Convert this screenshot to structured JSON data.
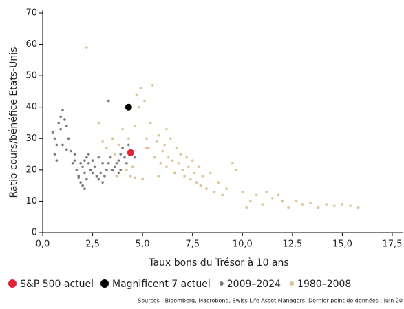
{
  "chart_data": {
    "type": "scatter",
    "xlabel": "Taux bons du Trésor à 10 ans",
    "ylabel": "Ratio cours/bénéfice Etats-Unis",
    "source": "Sources : Bloomberg, Macrobond, Swiss Life Asset Managers. Dernier point de données : juin 20",
    "xlim": [
      0,
      17.5
    ],
    "ylim": [
      0,
      70
    ],
    "xticks": [
      {
        "value": 0,
        "label": "0,0"
      },
      {
        "value": 2.5,
        "label": "2,5"
      },
      {
        "value": 5,
        "label": "5,0"
      },
      {
        "value": 7.5,
        "label": "7,5"
      },
      {
        "value": 10,
        "label": "10,0"
      },
      {
        "value": 12.5,
        "label": "12,5"
      },
      {
        "value": 15,
        "label": "15,0"
      },
      {
        "value": 17.5,
        "label": "17,5"
      }
    ],
    "yticks": [
      0,
      10,
      20,
      30,
      40,
      50,
      60,
      70
    ],
    "series": [
      {
        "name": "S&P 500 actuel",
        "color": "#e0253a",
        "x": [
          4.4
        ],
        "values": [
          25.5
        ]
      },
      {
        "name": "Magnificent 7 actuel",
        "color": "#000000",
        "x": [
          4.3
        ],
        "values": [
          40
        ]
      },
      {
        "name": "2009–2024",
        "color": "#7a7a7a",
        "x": [
          0.5,
          0.6,
          0.7,
          0.6,
          0.7,
          0.8,
          0.9,
          1.0,
          1.1,
          0.9,
          1.2,
          1.3,
          1.0,
          1.2,
          1.4,
          1.6,
          1.5,
          1.7,
          1.8,
          1.9,
          2.0,
          2.1,
          2.2,
          2.0,
          2.1,
          2.2,
          2.3,
          2.4,
          2.5,
          2.5,
          2.6,
          2.7,
          2.8,
          2.9,
          3.0,
          3.1,
          3.2,
          3.3,
          3.0,
          2.8,
          2.3,
          3.4,
          3.5,
          3.6,
          3.7,
          3.8,
          3.9,
          4.0,
          4.1,
          4.2,
          4.3,
          4.5,
          4.6,
          3.8,
          3.9,
          3.3,
          2.1,
          1.9,
          1.6,
          1.8
        ],
        "values": [
          32,
          30,
          28,
          25,
          23,
          35,
          37,
          39,
          36,
          33,
          34,
          30,
          28,
          26.5,
          26,
          25,
          22,
          20,
          18,
          16,
          15,
          14,
          17,
          21,
          23,
          24,
          22,
          20,
          19,
          23,
          21,
          18,
          17,
          19,
          16,
          18,
          20,
          22,
          22,
          24,
          25,
          24,
          20,
          21,
          22,
          23,
          25,
          27,
          24,
          22,
          28,
          26,
          24,
          19,
          20,
          42,
          19,
          22,
          23,
          17.5
        ]
      },
      {
        "name": "1980–2008",
        "color": "#dcc38f",
        "x": [
          2.2,
          2.8,
          3.0,
          3.2,
          3.5,
          3.6,
          3.7,
          3.8,
          4.0,
          4.1,
          4.2,
          4.4,
          4.5,
          4.6,
          4.7,
          4.8,
          4.9,
          5.0,
          5.1,
          5.2,
          5.3,
          5.4,
          5.5,
          5.6,
          5.7,
          5.8,
          5.9,
          6.0,
          6.1,
          6.2,
          6.3,
          6.4,
          6.5,
          6.6,
          6.7,
          6.8,
          6.9,
          7.0,
          7.1,
          7.2,
          7.3,
          7.4,
          7.5,
          7.6,
          7.7,
          7.8,
          7.9,
          8.0,
          8.2,
          8.4,
          8.6,
          8.8,
          9.0,
          9.2,
          9.5,
          9.7,
          10.0,
          10.2,
          10.4,
          10.7,
          11.0,
          11.2,
          11.5,
          11.8,
          12.0,
          12.3,
          12.7,
          13.0,
          13.4,
          13.8,
          14.2,
          14.6,
          15.0,
          15.4,
          15.8,
          5.2,
          4.3,
          6.2,
          5.8,
          4.6
        ],
        "values": [
          59,
          35,
          29,
          27,
          30,
          25,
          18,
          28,
          33,
          24,
          20,
          18,
          21,
          34,
          44,
          40,
          46,
          17,
          42,
          30,
          27,
          35,
          47,
          24,
          29,
          31,
          22,
          26,
          28,
          21,
          24,
          30,
          23,
          19,
          27,
          22,
          25,
          20,
          18,
          24,
          21,
          17,
          23,
          19,
          16,
          21,
          15,
          18,
          14,
          19,
          13,
          16,
          12,
          14,
          22,
          20,
          13,
          8,
          10,
          12,
          9,
          13,
          11,
          12,
          10,
          8,
          10,
          9,
          9.5,
          8,
          9,
          8.5,
          9,
          8.5,
          8,
          27,
          30,
          33,
          18,
          17.5
        ]
      }
    ]
  }
}
